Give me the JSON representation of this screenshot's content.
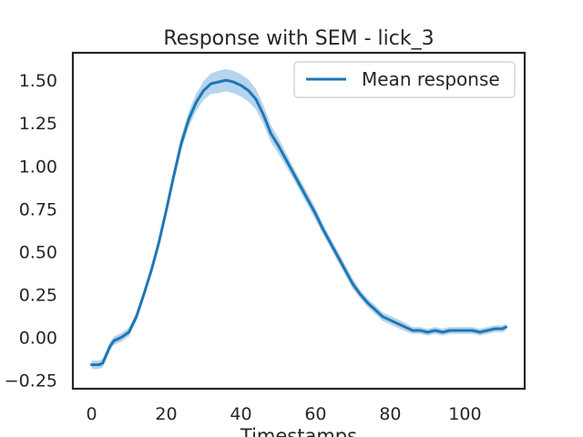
{
  "chart_data": {
    "type": "line",
    "title": "Response with SEM - lick_3",
    "xlabel": "Timestamps",
    "ylabel": "",
    "xlim": [
      -5,
      116
    ],
    "ylim": [
      -0.3,
      1.66
    ],
    "x_ticks": [
      0,
      20,
      40,
      60,
      80,
      100
    ],
    "x_tick_labels": [
      "0",
      "20",
      "40",
      "60",
      "80",
      "100"
    ],
    "y_ticks": [
      -0.25,
      0.0,
      0.25,
      0.5,
      0.75,
      1.0,
      1.25,
      1.5
    ],
    "y_tick_labels": [
      "−0.25",
      "0.00",
      "0.25",
      "0.50",
      "0.75",
      "1.00",
      "1.25",
      "1.50"
    ],
    "grid": false,
    "legend_position": "top-right",
    "series": [
      {
        "name": "Mean response",
        "color": "#1f77b4",
        "band_color": "#9fc5e8",
        "band_label": "SEM",
        "x": [
          0,
          2,
          3,
          4,
          5,
          6,
          8,
          10,
          12,
          14,
          16,
          18,
          20,
          22,
          24,
          26,
          28,
          30,
          32,
          34,
          36,
          38,
          40,
          42,
          44,
          46,
          48,
          50,
          52,
          54,
          56,
          58,
          60,
          62,
          64,
          66,
          68,
          70,
          72,
          74,
          76,
          78,
          80,
          82,
          84,
          86,
          88,
          90,
          92,
          94,
          96,
          98,
          100,
          102,
          104,
          106,
          108,
          110,
          111
        ],
        "values": [
          -0.16,
          -0.16,
          -0.15,
          -0.1,
          -0.05,
          -0.02,
          0.0,
          0.03,
          0.12,
          0.25,
          0.39,
          0.55,
          0.74,
          0.94,
          1.13,
          1.27,
          1.37,
          1.44,
          1.48,
          1.49,
          1.5,
          1.49,
          1.47,
          1.44,
          1.39,
          1.3,
          1.19,
          1.12,
          1.04,
          0.96,
          0.88,
          0.8,
          0.72,
          0.63,
          0.55,
          0.47,
          0.39,
          0.31,
          0.25,
          0.2,
          0.16,
          0.12,
          0.1,
          0.08,
          0.06,
          0.04,
          0.04,
          0.03,
          0.04,
          0.03,
          0.04,
          0.04,
          0.04,
          0.04,
          0.03,
          0.04,
          0.05,
          0.05,
          0.06
        ],
        "sem": [
          0.025,
          0.025,
          0.025,
          0.025,
          0.025,
          0.025,
          0.025,
          0.025,
          0.025,
          0.025,
          0.025,
          0.025,
          0.03,
          0.035,
          0.04,
          0.045,
          0.05,
          0.055,
          0.06,
          0.065,
          0.065,
          0.065,
          0.065,
          0.065,
          0.06,
          0.055,
          0.05,
          0.045,
          0.04,
          0.035,
          0.035,
          0.035,
          0.035,
          0.03,
          0.03,
          0.03,
          0.03,
          0.03,
          0.025,
          0.025,
          0.025,
          0.025,
          0.025,
          0.025,
          0.025,
          0.02,
          0.02,
          0.02,
          0.02,
          0.02,
          0.02,
          0.02,
          0.02,
          0.02,
          0.02,
          0.02,
          0.02,
          0.02,
          0.02
        ]
      }
    ]
  }
}
